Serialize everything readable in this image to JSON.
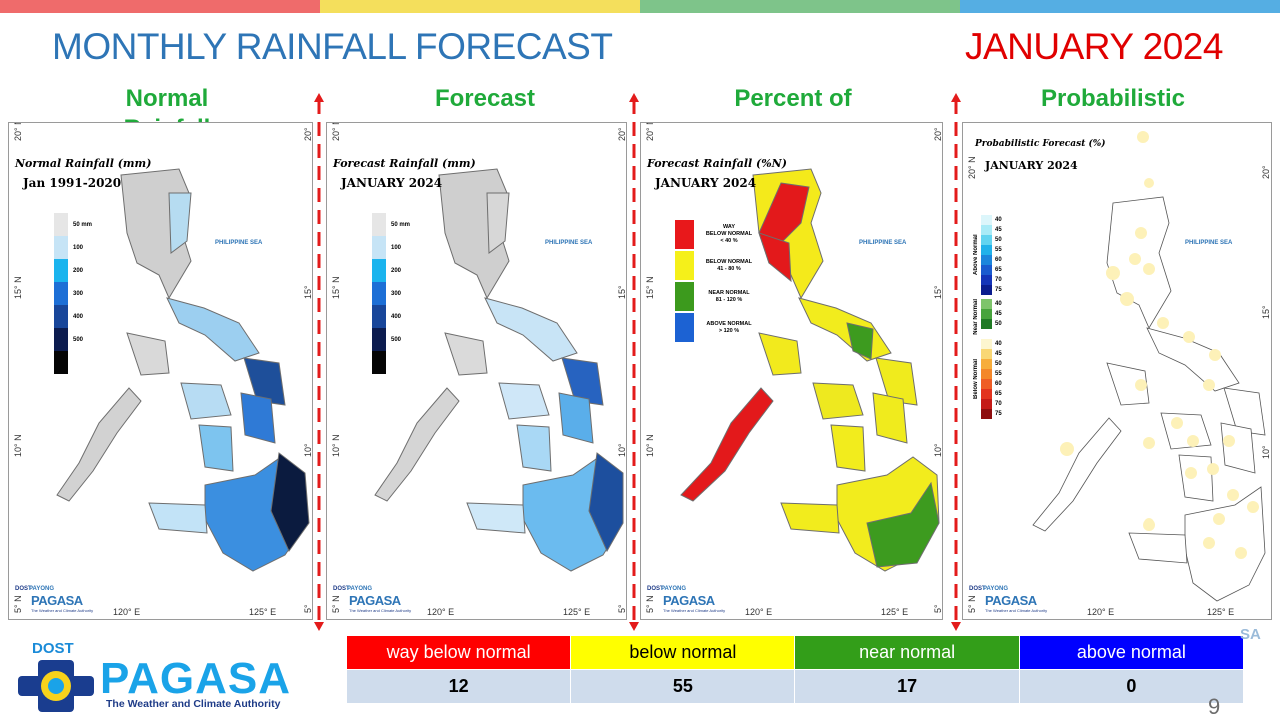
{
  "header": {
    "title": "MONTHLY RAINFALL FORECAST",
    "month": "JANUARY 2024",
    "stripe_colors": [
      "#ef6b6b",
      "#f4df5c",
      "#7ec48a",
      "#55aee3"
    ]
  },
  "columns": [
    {
      "heading": "Normal Rainfall"
    },
    {
      "heading": "Forecast"
    },
    {
      "heading": "Percent of"
    },
    {
      "heading": "Probabilistic"
    }
  ],
  "panels": {
    "normal": {
      "title": "Normal Rainfall (mm)",
      "subtitle": "Jan 1991-2020",
      "legend": [
        {
          "label": "50 mm",
          "color": "#e6e6e6"
        },
        {
          "label": "100",
          "color": "#c6e4f6"
        },
        {
          "label": "200",
          "color": "#1ab4ee"
        },
        {
          "label": "300",
          "color": "#1d6fd6"
        },
        {
          "label": "400",
          "color": "#18469a"
        },
        {
          "label": "500",
          "color": "#0c1c4f"
        },
        {
          "label": "",
          "color": "#050505"
        }
      ]
    },
    "forecast": {
      "title": "Forecast Rainfall (mm)",
      "subtitle": "JANUARY 2024",
      "legend": [
        {
          "label": "50 mm",
          "color": "#e6e6e6"
        },
        {
          "label": "100",
          "color": "#c6e4f6"
        },
        {
          "label": "200",
          "color": "#1ab4ee"
        },
        {
          "label": "300",
          "color": "#1d6fd6"
        },
        {
          "label": "400",
          "color": "#18469a"
        },
        {
          "label": "500",
          "color": "#0c1c4f"
        },
        {
          "label": "",
          "color": "#050505"
        }
      ]
    },
    "percent": {
      "title": "Forecast Rainfall (%N)",
      "subtitle": "JANUARY 2024",
      "legend": [
        {
          "label_1": "WAY",
          "label_2": "BELOW NORMAL",
          "label_3": "< 40 %",
          "color": "#e8181b"
        },
        {
          "label_1": "BELOW NORMAL",
          "label_2": "41 - 80 %",
          "label_3": "",
          "color": "#f5f01a"
        },
        {
          "label_1": "NEAR NORMAL",
          "label_2": "81 - 120 %",
          "label_3": "",
          "color": "#3c9a1d"
        },
        {
          "label_1": "ABOVE NORMAL",
          "label_2": "> 120 %",
          "label_3": "",
          "color": "#1c62d3"
        }
      ]
    },
    "probabilistic": {
      "title": "Probabilistic Forecast (%)",
      "subtitle": "JANUARY 2024",
      "groups": [
        {
          "name": "Above Normal",
          "labels": [
            "40",
            "45",
            "50",
            "55",
            "60",
            "65",
            "70",
            "75"
          ],
          "colors": [
            "#dcf6fb",
            "#a9ebf7",
            "#62d4f0",
            "#21b2ea",
            "#1c86dc",
            "#1a5bcf",
            "#1434b8",
            "#0a1c8e"
          ]
        },
        {
          "name": "Near Normal",
          "labels": [
            "40",
            "45",
            "50"
          ],
          "colors": [
            "#7ec46b",
            "#47a33c",
            "#1f7a24"
          ]
        },
        {
          "name": "Below Normal",
          "labels": [
            "40",
            "45",
            "50",
            "55",
            "60",
            "65",
            "70",
            "75"
          ],
          "colors": [
            "#fdf6cf",
            "#f9d774",
            "#f7ad3b",
            "#f4872a",
            "#ef5d25",
            "#e3331e",
            "#c41a17",
            "#8e0d0e"
          ]
        }
      ]
    },
    "axes": {
      "lat_labels": [
        "20° N",
        "15° N",
        "10° N",
        "5° N"
      ],
      "lon_labels": [
        "120° E",
        "125° E"
      ],
      "sea_label": "PHILIPPINE SEA"
    },
    "mini_logo": {
      "dost": "DOST",
      "payong": "PAYONG",
      "pagasa": "PAGASA",
      "tagline": "The Weather and Climate Authority"
    }
  },
  "footer": {
    "logo": {
      "dost": "DOST",
      "name": "PAGASA",
      "tagline": "The Weather and Climate Authority"
    },
    "ghost_text": "SA",
    "page_number": "9"
  },
  "summary_table": {
    "headers": [
      {
        "label": "way  below  normal",
        "bg": "#ff0000",
        "fg": "#ffffff"
      },
      {
        "label": "below normal",
        "bg": "#ffff00",
        "fg": "#000000"
      },
      {
        "label": "near normal",
        "bg": "#339e19",
        "fg": "#ffffff"
      },
      {
        "label": "above normal",
        "bg": "#0000ff",
        "fg": "#ffffff"
      }
    ],
    "values": [
      "12",
      "55",
      "17",
      "0"
    ]
  }
}
